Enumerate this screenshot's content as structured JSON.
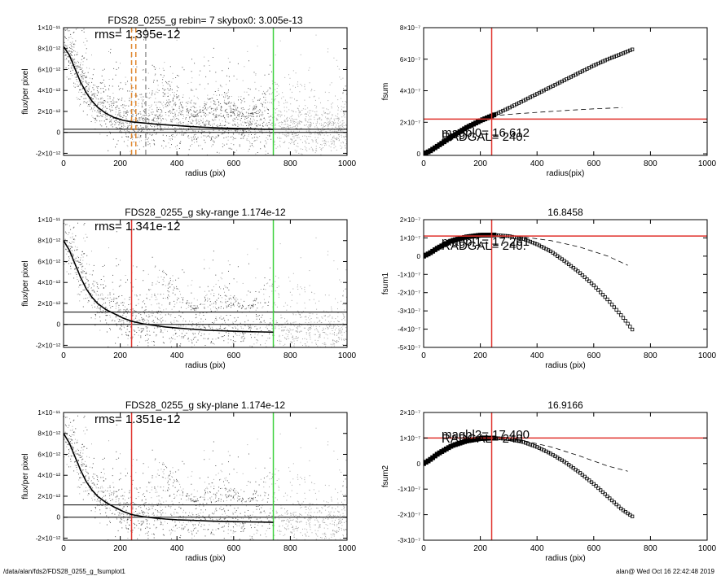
{
  "footer": {
    "path": "/data/alan/fds2/FDS28_0255_g_fsumplot1",
    "stamp": "alan@  Wed Oct 16 22:42:48 2019"
  },
  "colors": {
    "points_light": "#a9a9a9",
    "points_dark": "#555555",
    "profile": "#000000",
    "red_marker": "#e0312b",
    "green_marker": "#3fd23f",
    "orange_marker": "#e0862d"
  },
  "chart_data": [
    {
      "id": "left-1",
      "type": "scatter",
      "title": "FDS28_0255_g rebin= 7    skybox0:  3.005e-13",
      "annotation": "rms= 1.395e-12",
      "xlabel": "radius (pix)",
      "ylabel": "flux/per pixel",
      "xlim": [
        0,
        1000
      ],
      "ylim": [
        -2.2e-12,
        1e-11
      ],
      "xticks": [
        "0",
        "200",
        "400",
        "600",
        "800",
        "1000"
      ],
      "yticks": [
        {
          "value": -2e-12,
          "label": "-2×10⁻¹²"
        },
        {
          "value": 0,
          "label": "0"
        },
        {
          "value": 2e-12,
          "label": "2×10⁻¹²"
        },
        {
          "value": 4e-12,
          "label": "4×10⁻¹²"
        },
        {
          "value": 6e-12,
          "label": "6×10⁻¹²"
        },
        {
          "value": 8e-12,
          "label": "8×10⁻¹²"
        },
        {
          "value": 1e-11,
          "label": "1×10⁻¹¹"
        }
      ],
      "profile": {
        "x": [
          0,
          20,
          40,
          60,
          80,
          100,
          120,
          150,
          180,
          210,
          240,
          280,
          320,
          360,
          400,
          450,
          500,
          550,
          600,
          650,
          700,
          740
        ],
        "y": [
          8.2e-12,
          7.4e-12,
          6.1e-12,
          4.8e-12,
          3.8e-12,
          3e-12,
          2.4e-12,
          1.8e-12,
          1.4e-12,
          1.15e-12,
          1e-12,
          9e-13,
          8e-13,
          7.2e-13,
          6.5e-13,
          5.5e-13,
          4.8e-13,
          4.2e-13,
          3.8e-13,
          3.4e-13,
          3e-13,
          2.8e-13
        ]
      },
      "hlines": [
        0,
        3.005e-13
      ],
      "vlines": [
        {
          "x": 240,
          "color": "orange",
          "style": "dashed"
        },
        {
          "x": 255,
          "color": "orange",
          "style": "dashed"
        },
        {
          "x": 290,
          "color": "gray",
          "style": "dashed"
        },
        {
          "x": 740,
          "color": "green",
          "style": "solid"
        }
      ]
    },
    {
      "id": "left-2",
      "type": "scatter",
      "title": "FDS28_0255_g sky-range  1.174e-12",
      "annotation": "rms= 1.341e-12",
      "xlabel": "radius (pix)",
      "ylabel": "flux/per pixel",
      "xlim": [
        0,
        1000
      ],
      "ylim": [
        -2.2e-12,
        1e-11
      ],
      "xticks": [
        "0",
        "200",
        "400",
        "600",
        "800",
        "1000"
      ],
      "yticks": [
        {
          "value": -2e-12,
          "label": "-2×10⁻¹²"
        },
        {
          "value": 0,
          "label": "0"
        },
        {
          "value": 2e-12,
          "label": "2×10⁻¹²"
        },
        {
          "value": 4e-12,
          "label": "4×10⁻¹²"
        },
        {
          "value": 6e-12,
          "label": "6×10⁻¹²"
        },
        {
          "value": 8e-12,
          "label": "8×10⁻¹²"
        },
        {
          "value": 1e-11,
          "label": "1×10⁻¹¹"
        }
      ],
      "profile": {
        "x": [
          0,
          20,
          40,
          60,
          80,
          100,
          120,
          150,
          180,
          210,
          240,
          280,
          320,
          360,
          400,
          450,
          500,
          550,
          600,
          650,
          700,
          740
        ],
        "y": [
          8e-12,
          7.1e-12,
          5.8e-12,
          4.5e-12,
          3.4e-12,
          2.6e-12,
          2e-12,
          1.4e-12,
          1e-12,
          6e-13,
          3e-13,
          5e-14,
          -1e-13,
          -2.5e-13,
          -3.5e-13,
          -4.5e-13,
          -5.5e-13,
          -6e-13,
          -6.5e-13,
          -7e-13,
          -7.2e-13,
          -7.5e-13
        ]
      },
      "hlines": [
        0,
        1.174e-12
      ],
      "vlines": [
        {
          "x": 240,
          "color": "red",
          "style": "solid"
        },
        {
          "x": 740,
          "color": "green",
          "style": "solid"
        }
      ]
    },
    {
      "id": "left-3",
      "type": "scatter",
      "title": "FDS28_0255_g sky-plane  1.174e-12",
      "annotation": "rms= 1.351e-12",
      "xlabel": "radius (pix)",
      "ylabel": "flux/per pixel",
      "xlim": [
        0,
        1000
      ],
      "ylim": [
        -2.2e-12,
        1e-11
      ],
      "xticks": [
        "0",
        "200",
        "400",
        "600",
        "800",
        "1000"
      ],
      "yticks": [
        {
          "value": -2e-12,
          "label": "-2×10⁻¹²"
        },
        {
          "value": 0,
          "label": "0"
        },
        {
          "value": 2e-12,
          "label": "2×10⁻¹²"
        },
        {
          "value": 4e-12,
          "label": "4×10⁻¹²"
        },
        {
          "value": 6e-12,
          "label": "6×10⁻¹²"
        },
        {
          "value": 8e-12,
          "label": "8×10⁻¹²"
        },
        {
          "value": 1e-11,
          "label": "1×10⁻¹¹"
        }
      ],
      "profile": {
        "x": [
          0,
          20,
          40,
          60,
          80,
          100,
          120,
          150,
          180,
          210,
          240,
          280,
          320,
          360,
          400,
          450,
          500,
          550,
          600,
          650,
          700,
          740
        ],
        "y": [
          8e-12,
          7.1e-12,
          5.8e-12,
          4.5e-12,
          3.4e-12,
          2.6e-12,
          2e-12,
          1.4e-12,
          9.5e-13,
          5.5e-13,
          2.5e-13,
          5e-14,
          -8e-14,
          -1.8e-13,
          -2.5e-13,
          -3e-13,
          -3.5e-13,
          -4e-13,
          -4.2e-13,
          -4.5e-13,
          -4.7e-13,
          -5e-13
        ]
      },
      "hlines": [
        0,
        1.174e-12
      ],
      "vlines": [
        {
          "x": 240,
          "color": "red",
          "style": "solid"
        },
        {
          "x": 740,
          "color": "green",
          "style": "solid"
        }
      ]
    },
    {
      "id": "right-1",
      "type": "scatter",
      "title": "",
      "xlabel": "radius(pix)",
      "ylabel": "fsum",
      "xlim": [
        0,
        1000
      ],
      "ylim": [
        -1e-08,
        8e-07
      ],
      "xticks": [
        "0",
        "200",
        "400",
        "600",
        "800",
        "1000"
      ],
      "yticks": [
        {
          "value": 0,
          "label": "0"
        },
        {
          "value": 2e-07,
          "label": "2×10⁻⁷"
        },
        {
          "value": 4e-07,
          "label": "4×10⁻⁷"
        },
        {
          "value": 6e-07,
          "label": "6×10⁻⁷"
        },
        {
          "value": 8e-07,
          "label": "8×10⁻⁷"
        }
      ],
      "curve": {
        "x": [
          0,
          20,
          50,
          100,
          150,
          200,
          240,
          300,
          350,
          400,
          450,
          500,
          550,
          600,
          650,
          700,
          740
        ],
        "y": [
          0,
          1.5e-08,
          5e-08,
          1.1e-07,
          1.65e-07,
          2.1e-07,
          2.4e-07,
          2.9e-07,
          3.35e-07,
          3.8e-07,
          4.25e-07,
          4.7e-07,
          5.15e-07,
          5.6e-07,
          6e-07,
          6.35e-07,
          6.65e-07
        ]
      },
      "dashed": {
        "x": [
          240,
          300,
          400,
          500,
          600,
          700
        ],
        "y": [
          2.4e-07,
          2.5e-07,
          2.63e-07,
          2.75e-07,
          2.85e-07,
          2.93e-07
        ]
      },
      "crosshair": {
        "x": 240,
        "y": 2.2e-07
      },
      "labels": [
        "magbl0=  16.612",
        "RADGAL=    240."
      ]
    },
    {
      "id": "right-2",
      "type": "scatter",
      "title": "16.8458",
      "xlabel": "radius (pix)",
      "ylabel": "fsum1",
      "xlim": [
        0,
        1000
      ],
      "ylim": [
        -5e-07,
        2e-07
      ],
      "xticks": [
        "0",
        "200",
        "400",
        "600",
        "800",
        "1000"
      ],
      "yticks": [
        {
          "value": -5e-07,
          "label": "-5×10⁻⁷"
        },
        {
          "value": -4e-07,
          "label": "-4×10⁻⁷"
        },
        {
          "value": -3e-07,
          "label": "-3×10⁻⁷"
        },
        {
          "value": -2e-07,
          "label": "-2×10⁻⁷"
        },
        {
          "value": -1e-07,
          "label": "-1×10⁻⁷"
        },
        {
          "value": 0,
          "label": "0"
        },
        {
          "value": 1e-07,
          "label": "1×10⁻⁷"
        },
        {
          "value": 2e-07,
          "label": "2×10⁻⁷"
        }
      ],
      "curve": {
        "x": [
          0,
          20,
          50,
          100,
          150,
          200,
          250,
          300,
          350,
          400,
          450,
          500,
          550,
          600,
          650,
          700,
          740
        ],
        "y": [
          0,
          1.5e-08,
          4.5e-08,
          8.5e-08,
          1.05e-07,
          1.15e-07,
          1.16e-07,
          1.1e-07,
          9.5e-08,
          6.5e-08,
          2.5e-08,
          -3e-08,
          -9e-08,
          -1.6e-07,
          -2.4e-07,
          -3.3e-07,
          -4.1e-07
        ]
      },
      "dashed": {
        "x": [
          240,
          350,
          450,
          550,
          650,
          720
        ],
        "y": [
          1.16e-07,
          1.05e-07,
          8.5e-08,
          5e-08,
          0,
          -5e-08
        ]
      },
      "crosshair": {
        "x": 240,
        "y": 1.1e-07
      },
      "labels": [
        "magbl1=  17.261",
        "RADGAL=    240."
      ]
    },
    {
      "id": "right-3",
      "type": "scatter",
      "title": "16.9166",
      "xlabel": "radius (pix)",
      "ylabel": "fsum2",
      "xlim": [
        0,
        1000
      ],
      "ylim": [
        -3e-07,
        2e-07
      ],
      "xticks": [
        "0",
        "200",
        "400",
        "600",
        "800",
        "1000"
      ],
      "yticks": [
        {
          "value": -3e-07,
          "label": "-3×10⁻⁷"
        },
        {
          "value": -2e-07,
          "label": "-2×10⁻⁷"
        },
        {
          "value": -1e-07,
          "label": "-1×10⁻⁷"
        },
        {
          "value": 0,
          "label": "0"
        },
        {
          "value": 1e-07,
          "label": "1×10⁻⁷"
        },
        {
          "value": 2e-07,
          "label": "2×10⁻⁷"
        }
      ],
      "curve": {
        "x": [
          0,
          20,
          50,
          100,
          150,
          200,
          250,
          300,
          350,
          400,
          450,
          500,
          550,
          600,
          650,
          700,
          740
        ],
        "y": [
          0,
          1.3e-08,
          3.8e-08,
          7e-08,
          8.8e-08,
          9.8e-08,
          1e-07,
          9.6e-08,
          8.5e-08,
          6.5e-08,
          3.8e-08,
          5e-09,
          -3.5e-08,
          -8e-08,
          -1.3e-07,
          -1.8e-07,
          -2.1e-07
        ]
      },
      "dashed": {
        "x": [
          240,
          350,
          450,
          550,
          650,
          720
        ],
        "y": [
          1e-07,
          9e-08,
          6.5e-08,
          3e-08,
          -1e-08,
          -3e-08
        ]
      },
      "crosshair": {
        "x": 240,
        "y": 1e-07
      },
      "labels": [
        "magbl2=  17.400",
        "RADGAL=    240."
      ]
    }
  ]
}
